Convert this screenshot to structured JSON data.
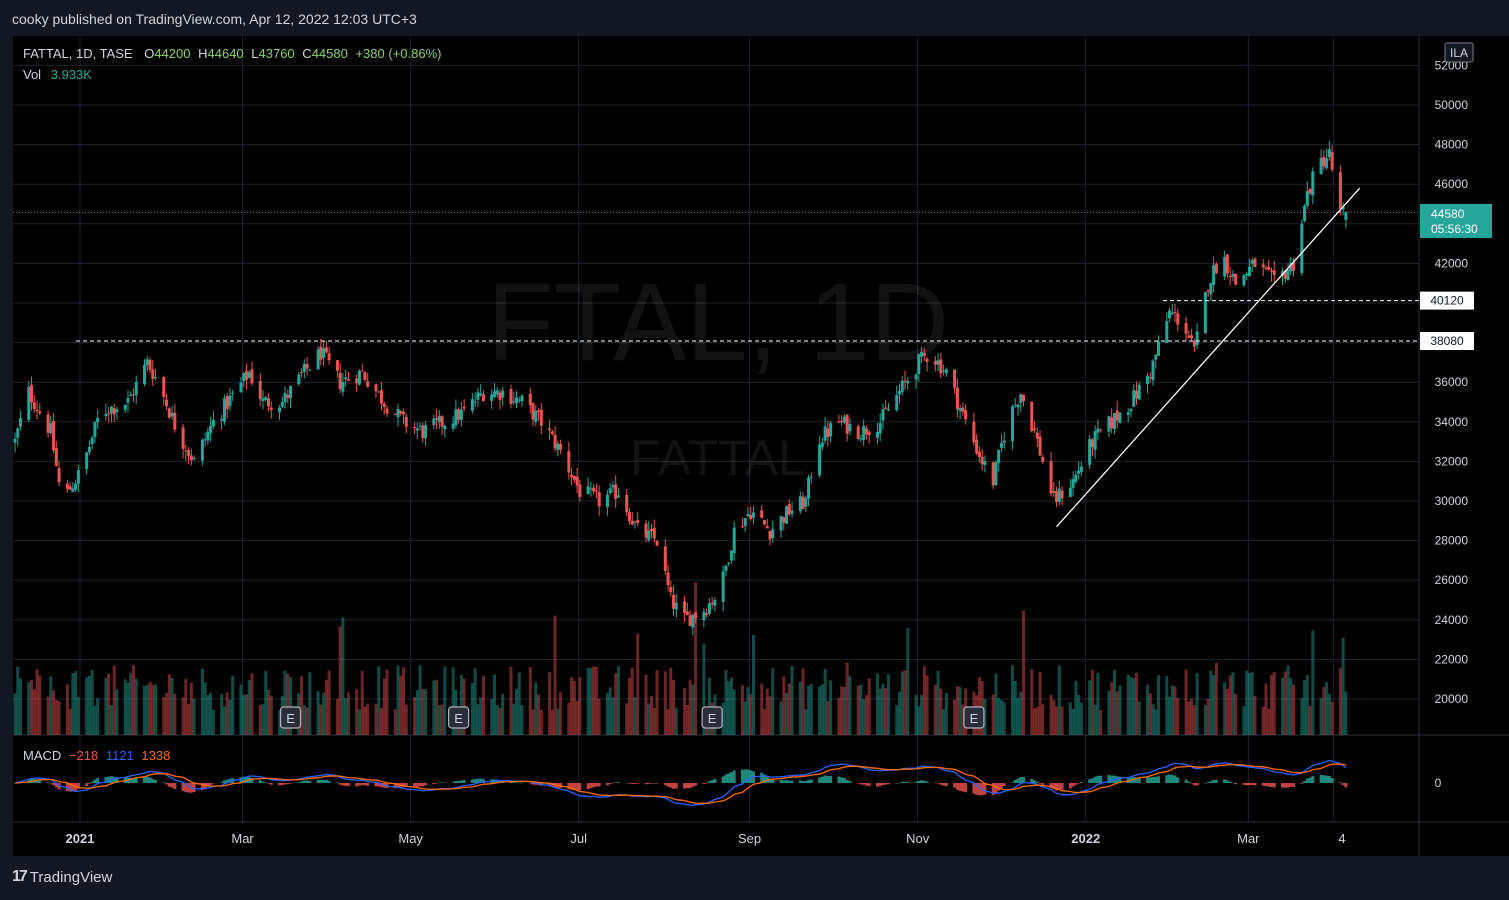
{
  "header": {
    "publish_text": "cooky published on TradingView.com, Apr 12, 2022 12:03 UTC+3"
  },
  "footer": {
    "brand": "TradingView",
    "brand_mark": "17"
  },
  "legend": {
    "symbol_line": "FATTAL, 1D, TASE",
    "open_label": "O",
    "open": "44200",
    "high_label": "H",
    "high": "44640",
    "low_label": "L",
    "low": "43760",
    "close_label": "C",
    "close": "44580",
    "change": "+380 (+0.86%)",
    "vol_label": "Vol",
    "vol_value": "3.933K",
    "macd_label": "MACD",
    "macd_hist": "−218",
    "macd_line": "1121",
    "macd_signal": "1338"
  },
  "watermark": {
    "line1": "FTAL, 1D",
    "line2": "FATTAL"
  },
  "currency_badge": "ILA",
  "price_tag": {
    "price": "44580",
    "countdown": "05:56:30"
  },
  "level_tags": [
    "40120",
    "38080"
  ],
  "earnings_marker": "E",
  "chart_data": {
    "type": "candlestick",
    "symbol": "FATTAL",
    "interval": "1D",
    "exchange": "TASE",
    "y_ticks": [
      20000,
      22000,
      24000,
      26000,
      28000,
      30000,
      32000,
      34000,
      36000,
      38000,
      40000,
      42000,
      44000,
      46000,
      48000,
      50000,
      52000
    ],
    "y_tick_labels": [
      "20000",
      "22000",
      "24000",
      "26000",
      "28000",
      "30000",
      "32000",
      "34000",
      "36000",
      "38000",
      "40000",
      "42000",
      "44000",
      "46000",
      "48000",
      "50000",
      "52000"
    ],
    "x_tick_labels": [
      "2021",
      "Mar",
      "May",
      "Jul",
      "Sep",
      "Nov",
      "2022",
      "Mar",
      "4"
    ],
    "price_series_anchors": [
      [
        "2020-12-15",
        33000
      ],
      [
        "2020-12-20",
        35500
      ],
      [
        "2020-12-28",
        33500
      ],
      [
        "2021-01-01",
        30000
      ],
      [
        "2021-01-08",
        31500
      ],
      [
        "2021-01-15",
        34500
      ],
      [
        "2021-01-25",
        35000
      ],
      [
        "2021-02-01",
        37000
      ],
      [
        "2021-02-05",
        36000
      ],
      [
        "2021-02-12",
        33500
      ],
      [
        "2021-02-18",
        32000
      ],
      [
        "2021-02-25",
        34000
      ],
      [
        "2021-03-05",
        35500
      ],
      [
        "2021-03-10",
        36500
      ],
      [
        "2021-03-15",
        35000
      ],
      [
        "2021-03-22",
        35000
      ],
      [
        "2021-03-30",
        36500
      ],
      [
        "2021-04-05",
        37500
      ],
      [
        "2021-04-12",
        36000
      ],
      [
        "2021-04-20",
        36500
      ],
      [
        "2021-04-28",
        35000
      ],
      [
        "2021-05-05",
        34000
      ],
      [
        "2021-05-12",
        33500
      ],
      [
        "2021-05-20",
        34000
      ],
      [
        "2021-05-27",
        34500
      ],
      [
        "2021-06-03",
        35500
      ],
      [
        "2021-06-10",
        35500
      ],
      [
        "2021-06-17",
        35000
      ],
      [
        "2021-06-24",
        34000
      ],
      [
        "2021-07-01",
        32500
      ],
      [
        "2021-07-08",
        30500
      ],
      [
        "2021-07-15",
        30000
      ],
      [
        "2021-07-22",
        30500
      ],
      [
        "2021-07-29",
        28500
      ],
      [
        "2021-08-05",
        28000
      ],
      [
        "2021-08-10",
        25000
      ],
      [
        "2021-08-15",
        24000
      ],
      [
        "2021-08-22",
        24500
      ],
      [
        "2021-08-28",
        25500
      ],
      [
        "2021-09-02",
        28500
      ],
      [
        "2021-09-08",
        29500
      ],
      [
        "2021-09-15",
        28500
      ],
      [
        "2021-09-22",
        29500
      ],
      [
        "2021-09-28",
        30000
      ],
      [
        "2021-10-02",
        33000
      ],
      [
        "2021-10-10",
        34000
      ],
      [
        "2021-10-18",
        33500
      ],
      [
        "2021-10-25",
        34000
      ],
      [
        "2021-11-01",
        35500
      ],
      [
        "2021-11-08",
        37000
      ],
      [
        "2021-11-12",
        37500
      ],
      [
        "2021-11-18",
        36500
      ],
      [
        "2021-11-25",
        34000
      ],
      [
        "2021-12-01",
        32000
      ],
      [
        "2021-12-05",
        31000
      ],
      [
        "2021-12-10",
        34000
      ],
      [
        "2021-12-15",
        35500
      ],
      [
        "2021-12-20",
        33500
      ],
      [
        "2021-12-27",
        30000
      ],
      [
        "2022-01-03",
        31000
      ],
      [
        "2022-01-10",
        33000
      ],
      [
        "2022-01-17",
        34000
      ],
      [
        "2022-01-24",
        35000
      ],
      [
        "2022-01-31",
        36500
      ],
      [
        "2022-02-07",
        39500
      ],
      [
        "2022-02-12",
        39000
      ],
      [
        "2022-02-16",
        37500
      ],
      [
        "2022-02-21",
        41000
      ],
      [
        "2022-02-26",
        42500
      ],
      [
        "2022-03-03",
        41000
      ],
      [
        "2022-03-10",
        42000
      ],
      [
        "2022-03-17",
        41000
      ],
      [
        "2022-03-24",
        42000
      ],
      [
        "2022-03-29",
        45500
      ],
      [
        "2022-04-02",
        47000
      ],
      [
        "2022-04-06",
        47500
      ],
      [
        "2022-04-10",
        44500
      ],
      [
        "2022-04-12",
        44580
      ]
    ],
    "horizontal_levels": [
      40120,
      38080
    ],
    "trendline": [
      [
        "2021-12-28",
        28700
      ],
      [
        "2022-04-17",
        45800
      ]
    ],
    "volume_series": "Vol",
    "macd": {
      "hist": -218,
      "macd": 1121,
      "signal": 1338,
      "zero_tick_label": "0"
    },
    "earnings_dates": [
      "2021-03-25",
      "2021-05-25",
      "2021-08-25",
      "2021-11-28"
    ],
    "colors": {
      "up": "#26a69a",
      "down": "#ef5350",
      "bg": "#000000",
      "grid": "#1e222d",
      "macd_line": "#2962ff",
      "signal_line": "#ff6d00",
      "price_tag": "#26a69a"
    }
  }
}
